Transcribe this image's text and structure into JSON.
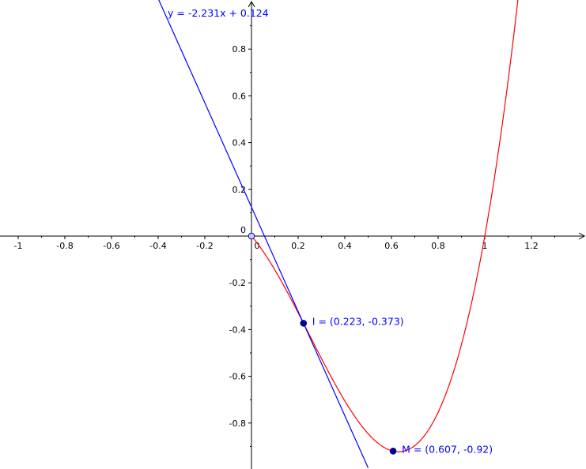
{
  "chart_data": {
    "type": "line",
    "title": "",
    "xlabel": "",
    "ylabel": "",
    "xlim": [
      -1.05,
      1.42
    ],
    "ylim": [
      -1.0,
      0.97
    ],
    "grid": false,
    "x_ticks": [
      "-1",
      "-0.8",
      "-0.6",
      "-0.4",
      "-0.2",
      "0.2",
      "0.4",
      "0.6",
      "0.8",
      "1",
      "1.2"
    ],
    "x_tick_values": [
      -1,
      -0.8,
      -0.6,
      -0.4,
      -0.2,
      0.2,
      0.4,
      0.6,
      0.8,
      1,
      1.2
    ],
    "y_ticks": [
      "0.8",
      "0.6",
      "0.4",
      "0.2",
      "-0.2",
      "-0.4",
      "-0.6",
      "-0.8"
    ],
    "y_tick_values": [
      0.8,
      0.6,
      0.4,
      0.2,
      -0.2,
      -0.4,
      -0.6,
      -0.8
    ],
    "origin_labels": {
      "x": "0",
      "y": "0"
    },
    "series": [
      {
        "kind": "curve",
        "color": "#ff0000",
        "x_range": [
          0,
          1.2
        ],
        "sample_points": [
          [
            0,
            0
          ],
          [
            0.223,
            -0.373
          ],
          [
            0.607,
            -0.92
          ],
          [
            1,
            0
          ]
        ]
      },
      {
        "kind": "line",
        "color": "#0000ff",
        "label": "y = -2.231x + 0.124",
        "slope": -2.231,
        "intercept": 0.124
      }
    ],
    "points": [
      {
        "label": "I = (0.223, -0.373)",
        "x": 0.223,
        "y": -0.373,
        "filled": true
      },
      {
        "label": "M = (0.607, -0.92)",
        "x": 0.607,
        "y": -0.92,
        "filled": true
      },
      {
        "label": "",
        "x": 0,
        "y": 0,
        "filled": false
      }
    ],
    "colors": {
      "axis": "#000000",
      "text": "#0000ff",
      "point_fill": "#000099"
    }
  }
}
